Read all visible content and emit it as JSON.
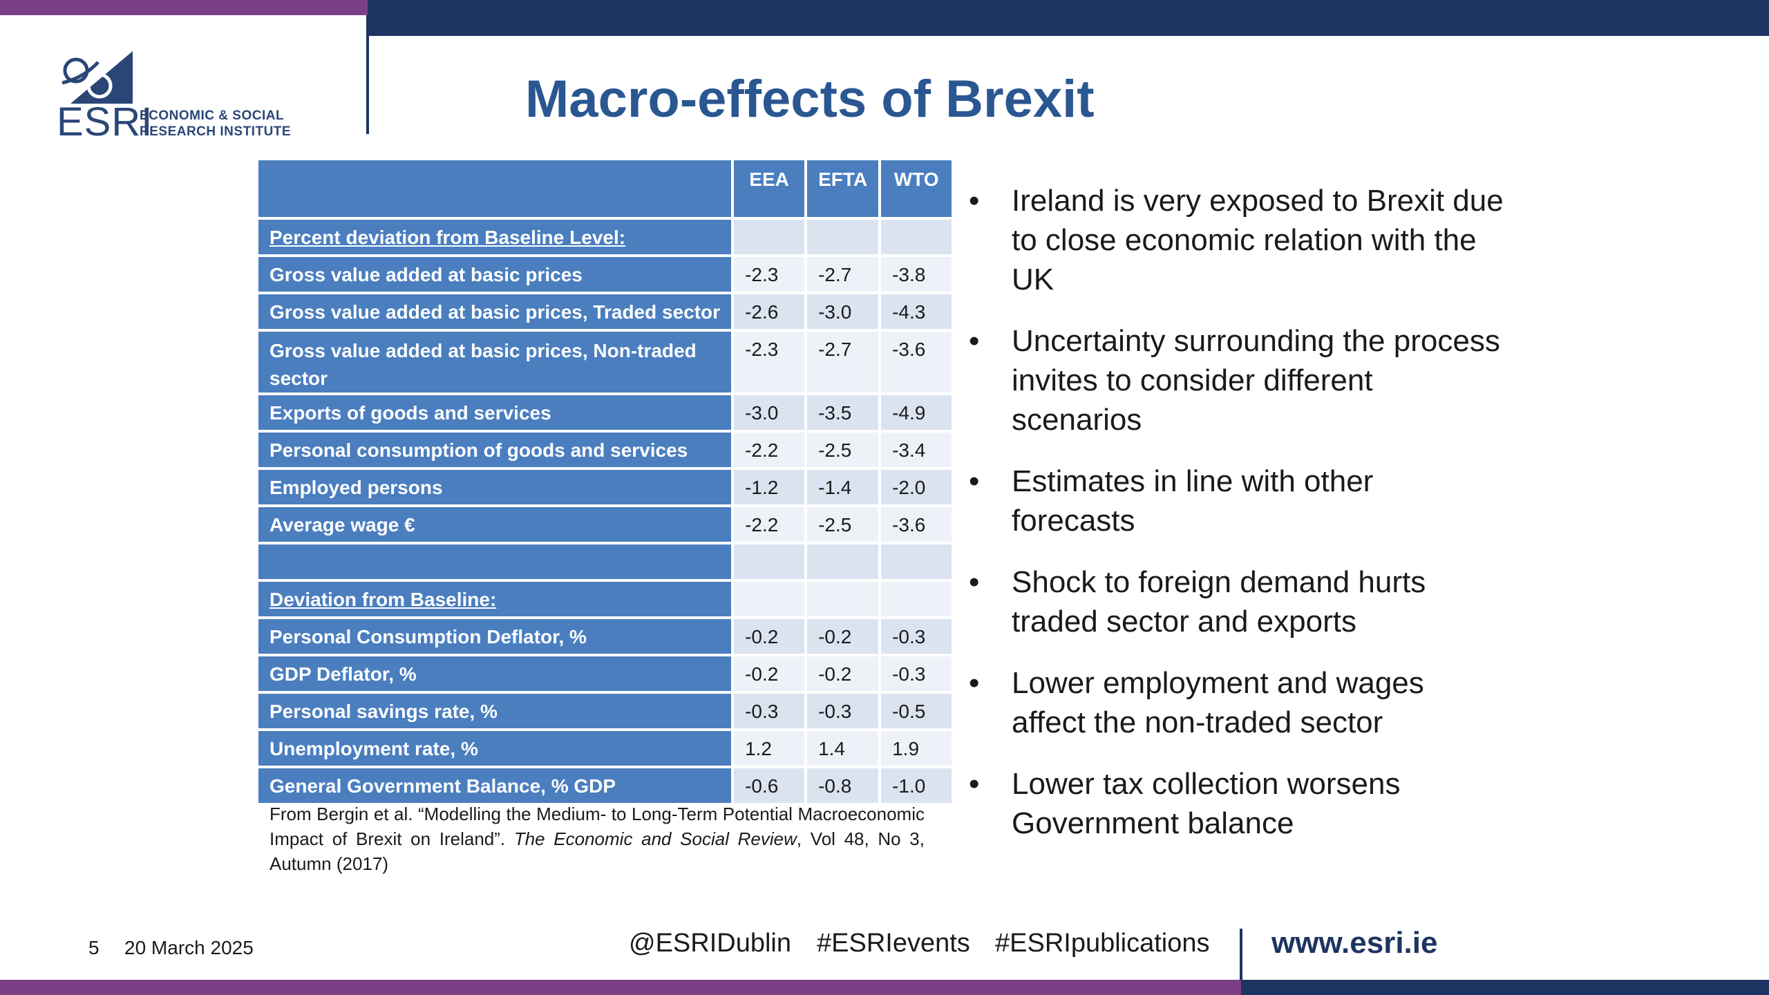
{
  "logo": {
    "mark_text": "ESRI",
    "line1": "ECONOMIC & SOCIAL",
    "line2": "RESEARCH INSTITUTE"
  },
  "title": "Macro-effects of Brexit",
  "table": {
    "headers": [
      "",
      "EEA",
      "EFTA",
      "WTO"
    ],
    "rows": [
      {
        "label": "Percent deviation from Baseline Level:",
        "section": true,
        "values": [
          "",
          "",
          ""
        ]
      },
      {
        "label": "Gross value added at basic prices",
        "values": [
          "-2.3",
          "-2.7",
          "-3.8"
        ]
      },
      {
        "label": "Gross value added at basic prices, Traded sector",
        "values": [
          "-2.6",
          "-3.0",
          "-4.3"
        ]
      },
      {
        "label": "Gross value added at basic prices, Non-traded sector",
        "wrap": true,
        "values": [
          "-2.3",
          "-2.7",
          "-3.6"
        ]
      },
      {
        "label": "Exports of goods and services",
        "values": [
          "-3.0",
          "-3.5",
          "-4.9"
        ]
      },
      {
        "label": "Personal consumption of goods and services",
        "values": [
          "-2.2",
          "-2.5",
          "-3.4"
        ]
      },
      {
        "label": "Employed persons",
        "values": [
          "-1.2",
          "-1.4",
          "-2.0"
        ]
      },
      {
        "label": "Average wage €",
        "values": [
          "-2.2",
          "-2.5",
          "-3.6"
        ]
      },
      {
        "label": "",
        "values": [
          "",
          "",
          ""
        ]
      },
      {
        "label": "Deviation from Baseline:",
        "section": true,
        "values": [
          "",
          "",
          ""
        ]
      },
      {
        "label": "Personal Consumption Deflator, %",
        "values": [
          "-0.2",
          "-0.2",
          "-0.3"
        ]
      },
      {
        "label": "GDP Deflator, %",
        "values": [
          "-0.2",
          "-0.2",
          "-0.3"
        ]
      },
      {
        "label": "Personal savings rate, %",
        "values": [
          "-0.3",
          "-0.3",
          "-0.5"
        ]
      },
      {
        "label": "Unemployment rate, %",
        "values": [
          "1.2",
          "1.4",
          "1.9"
        ]
      },
      {
        "label": "General Government Balance, % GDP",
        "values": [
          "-0.6",
          "-0.8",
          "-1.0"
        ]
      }
    ]
  },
  "citation": {
    "part1": "From Bergin et al. “Modelling the Medium- to Long-Term Potential Macroeconomic Impact of Brexit on Ireland”. ",
    "journal": "The Economic and Social Review",
    "part2": ", Vol 48, No 3, Autumn (2017)"
  },
  "bullets": [
    "Ireland is very exposed to Brexit due to close economic relation with the UK",
    "Uncertainty surrounding the process invites to consider different scenarios",
    "Estimates in line with other forecasts",
    "Shock to foreign demand hurts traded sector and exports",
    "Lower employment and wages affect the non-traded sector",
    "Lower tax collection worsens Government balance"
  ],
  "footer": {
    "page": "5",
    "date": "20 March 2025",
    "handles": [
      "@ESRIDublin",
      "#ESRIevents",
      "#ESRIpublications"
    ],
    "website": "www.esri.ie"
  },
  "colors": {
    "navy": "#1e3461",
    "purple": "#7b3f86",
    "table_header": "#4a7ebf",
    "title": "#2a5791"
  }
}
